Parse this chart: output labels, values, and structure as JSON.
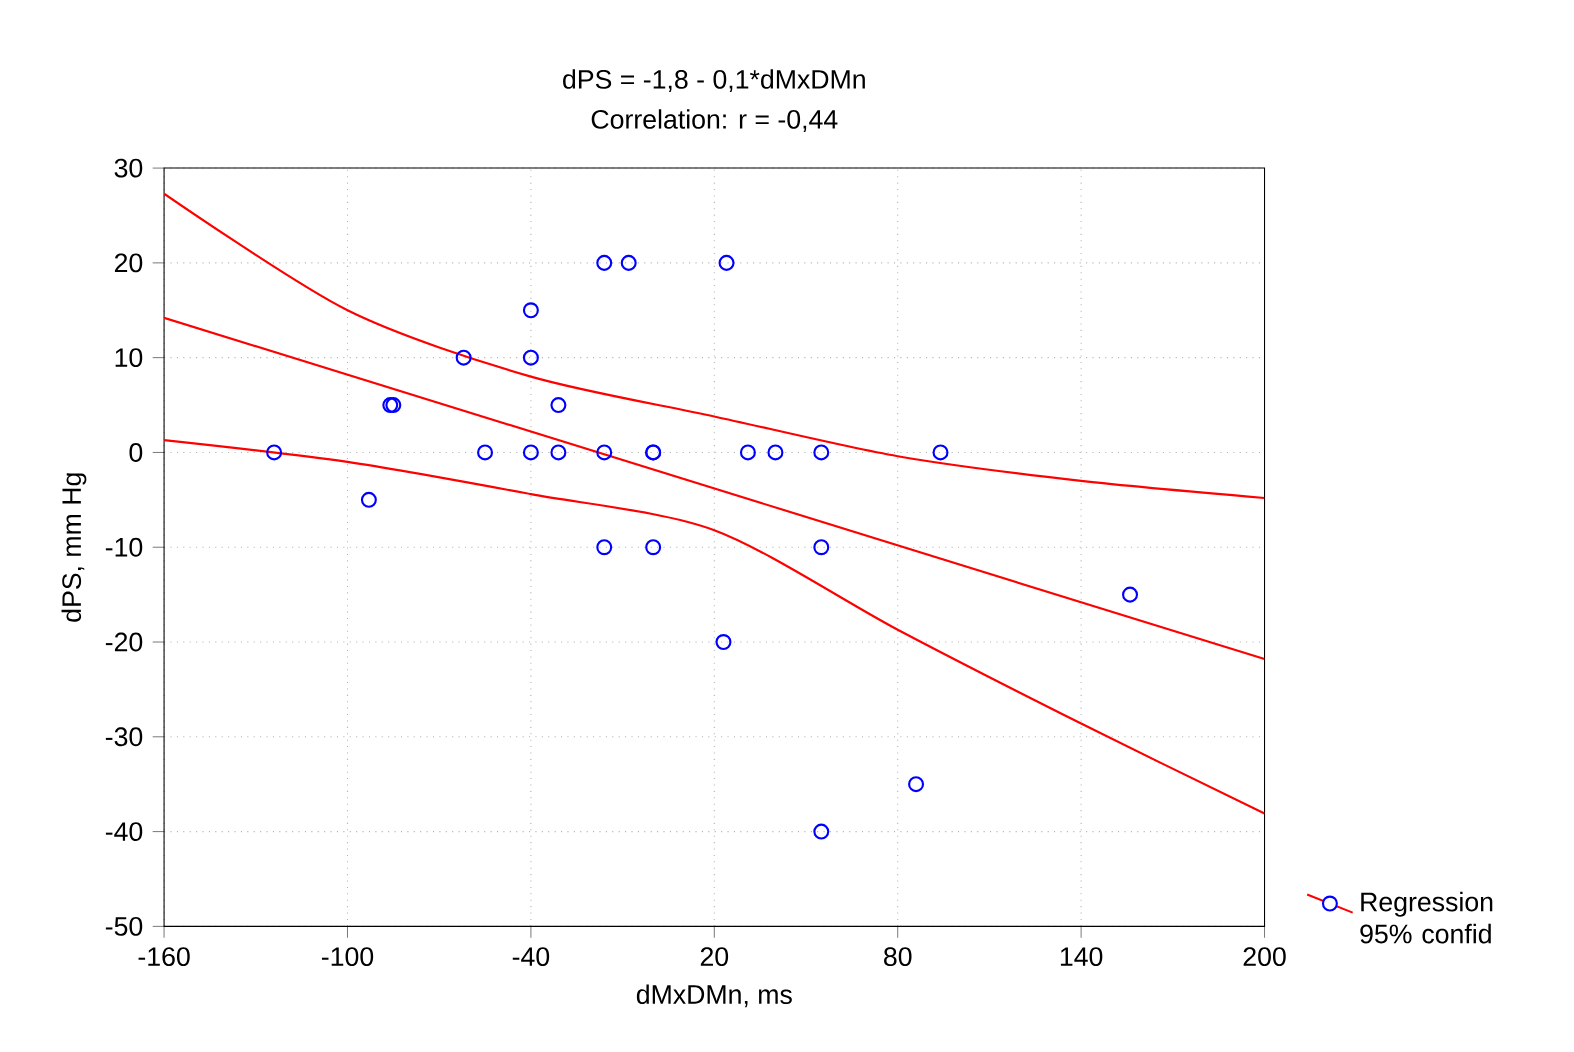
{
  "chart_data": {
    "type": "scatter",
    "title": "dPS = -1,8 - 0,1*dMxDMn",
    "subtitle": "Correlation: r = -0,44",
    "xlabel": "dMxDMn, ms",
    "ylabel": "dPS, mm Hg",
    "xlim": [
      -160,
      200
    ],
    "ylim": [
      -50,
      30
    ],
    "xticks": [
      -160,
      -100,
      -40,
      20,
      80,
      140,
      200
    ],
    "yticks": [
      -50,
      -40,
      -30,
      -20,
      -10,
      0,
      10,
      20,
      30
    ],
    "grid": true,
    "legend": "bottom right",
    "series": [
      {
        "name": "Regression 95% confid",
        "marker": "circle",
        "color": "#0000ff",
        "x": [
          -124,
          -93,
          -86,
          -85,
          -62,
          -55,
          -40,
          -40,
          -40,
          -31,
          -31,
          -16,
          -16,
          -16,
          -8,
          0,
          0,
          0,
          23,
          24,
          31,
          40,
          55,
          55,
          55,
          86,
          94,
          156
        ],
        "values": [
          0,
          -5,
          5,
          5,
          10,
          0,
          15,
          10,
          0,
          5,
          0,
          20,
          0,
          -10,
          20,
          0,
          0,
          -10,
          -20,
          20,
          0,
          0,
          -10,
          0,
          -40,
          -35,
          0,
          -15
        ]
      },
      {
        "type": "line",
        "marker": "none",
        "color": "#ff0000",
        "x": [
          -160,
          200
        ],
        "values": [
          14.2,
          -21.8
        ]
      },
      {
        "type": "line",
        "marker": "none",
        "color": "#ff0000",
        "x": [
          -160,
          -100,
          -40,
          20,
          80,
          140,
          200
        ],
        "values": [
          27.3,
          15,
          8,
          3.8,
          -0.4,
          -3,
          -4.8
        ]
      },
      {
        "type": "line",
        "marker": "none",
        "color": "#ff0000",
        "x": [
          -160,
          -100,
          -40,
          20,
          80,
          140,
          200
        ],
        "values": [
          1.3,
          -1,
          -4.4,
          -8.2,
          -18.7,
          -28.6,
          -38.1
        ]
      }
    ]
  }
}
